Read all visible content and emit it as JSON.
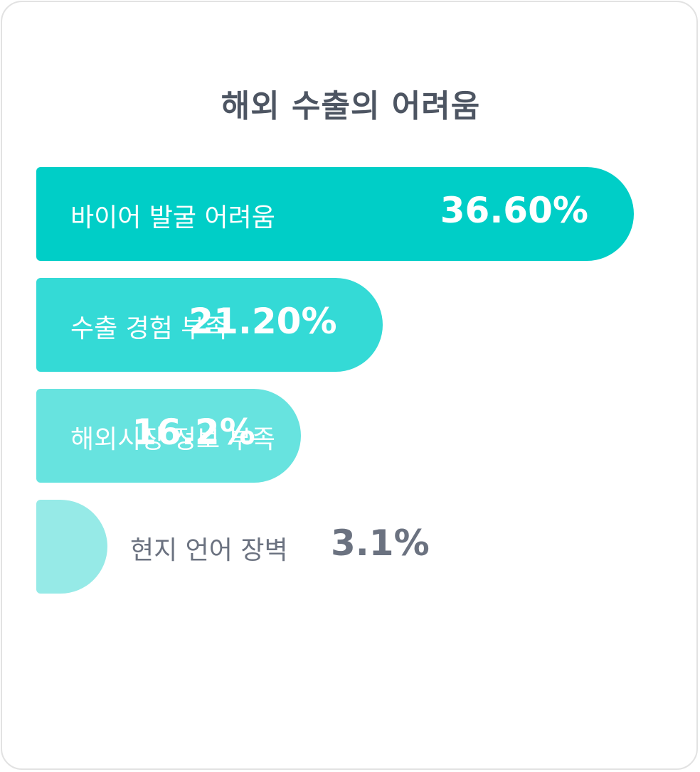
{
  "chart_data": {
    "type": "bar",
    "orientation": "horizontal",
    "title": "해외 수출의 어려움",
    "categories": [
      "바이어 발굴 어려움",
      "수출 경험 부족",
      "해외시장 정보 부족",
      "현지 언어 장벽"
    ],
    "values": [
      36.6,
      21.2,
      16.2,
      3.1
    ],
    "value_labels": [
      "36.60%",
      "21.20%",
      "16.2%",
      "3.1%"
    ],
    "colors": [
      "#00cec7",
      "#34dad6",
      "#67e3df",
      "#96eae7"
    ],
    "legend": "none",
    "grid": false
  }
}
